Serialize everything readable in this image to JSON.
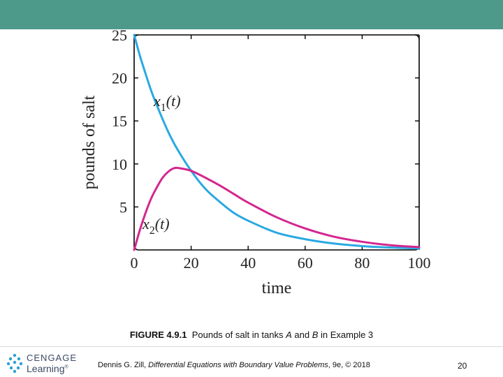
{
  "colors": {
    "top_band": "#4d9a8b",
    "series_x1": "#29a9e1",
    "series_x2": "#d4268f",
    "logo_accent": "#2a9fd8",
    "axis": "#000000"
  },
  "chart_data": {
    "type": "line",
    "title": "",
    "xlabel": "time",
    "ylabel": "pounds of salt",
    "xlim": [
      0,
      100
    ],
    "ylim": [
      0,
      25
    ],
    "xticks": [
      0,
      20,
      40,
      60,
      80,
      100
    ],
    "yticks": [
      5,
      10,
      15,
      20,
      25
    ],
    "grid": false,
    "series": [
      {
        "name": "x1(t)",
        "label_main": "x",
        "label_sub": "1",
        "label_arg": "(t)",
        "x": [
          0,
          2,
          4,
          6,
          8,
          10,
          12,
          15,
          20,
          25,
          30,
          35,
          40,
          50,
          60,
          70,
          80,
          90,
          100
        ],
        "values": [
          25,
          22.6,
          20.5,
          18.5,
          16.8,
          15.2,
          13.7,
          11.8,
          9.2,
          7.1,
          5.6,
          4.3,
          3.4,
          2.0,
          1.25,
          0.75,
          0.45,
          0.28,
          0.17
        ]
      },
      {
        "name": "x2(t)",
        "label_main": "x",
        "label_sub": "2",
        "label_arg": "(t)",
        "x": [
          0,
          2,
          4,
          6,
          8,
          10,
          12,
          14,
          16,
          20,
          25,
          30,
          35,
          40,
          50,
          60,
          70,
          80,
          90,
          100
        ],
        "values": [
          0,
          2.3,
          4.3,
          6.0,
          7.3,
          8.4,
          9.1,
          9.5,
          9.5,
          9.2,
          8.4,
          7.5,
          6.5,
          5.5,
          3.8,
          2.5,
          1.55,
          0.95,
          0.55,
          0.33
        ]
      }
    ]
  },
  "caption": {
    "label": "FIGURE 4.9.1",
    "text_1": "Pounds of salt in tanks ",
    "a": "A",
    "text_2": " and ",
    "b": "B",
    "text_3": " in Example 3"
  },
  "footer": {
    "logo_top": "CENGAGE",
    "logo_bottom": "Learning",
    "logo_tm": "®",
    "credit_author": "Dennis G. Zill, ",
    "credit_book": "Differential Equations with Boundary Value Problems",
    "credit_rest": ", 9e, © 2018",
    "page_number": "20"
  }
}
